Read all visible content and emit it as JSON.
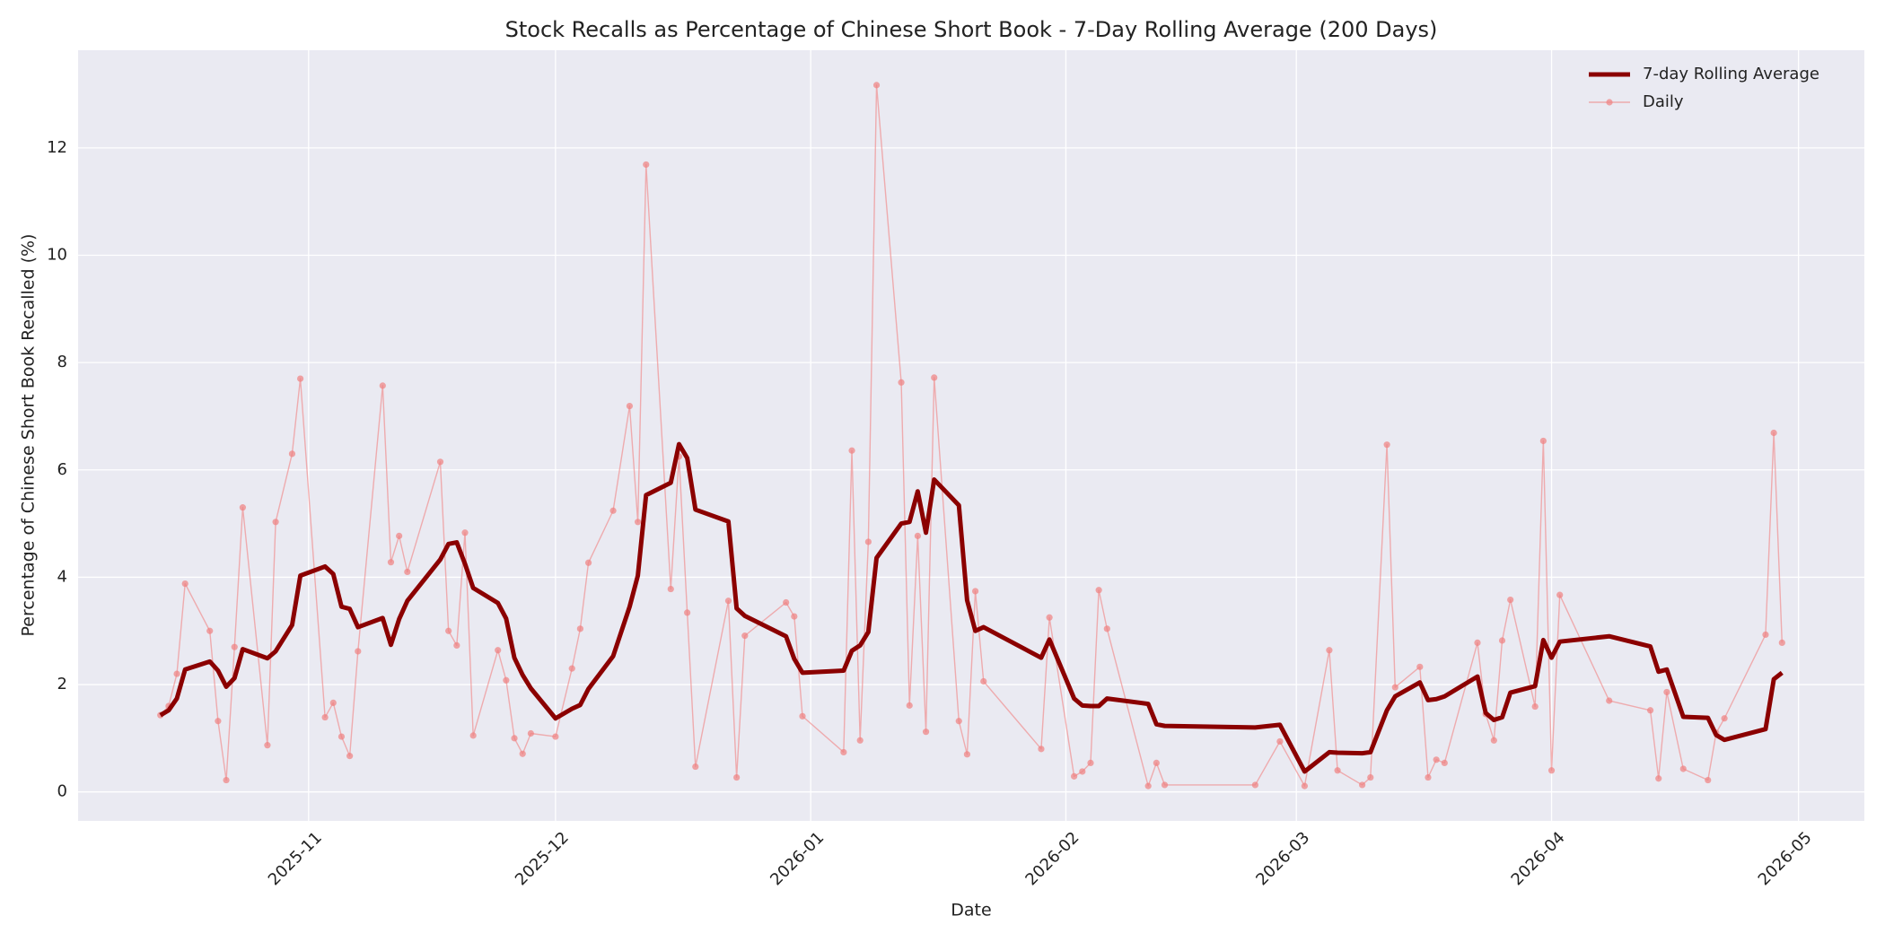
{
  "chart_data": {
    "type": "line",
    "title": "Stock Recalls as Percentage of Chinese Short Book - 7-Day Rolling Average (200 Days)",
    "xlabel": "Date",
    "ylabel": "Percentage of Chinese Short Book Recalled (%)",
    "x": [
      "2025-10-14",
      "2025-10-15",
      "2025-10-16",
      "2025-10-17",
      "2025-10-20",
      "2025-10-21",
      "2025-10-22",
      "2025-10-23",
      "2025-10-24",
      "2025-10-27",
      "2025-10-28",
      "2025-10-30",
      "2025-10-31",
      "2025-11-03",
      "2025-11-04",
      "2025-11-05",
      "2025-11-06",
      "2025-11-07",
      "2025-11-10",
      "2025-11-11",
      "2025-11-12",
      "2025-11-13",
      "2025-11-17",
      "2025-11-18",
      "2025-11-19",
      "2025-11-20",
      "2025-11-21",
      "2025-11-24",
      "2025-11-25",
      "2025-11-26",
      "2025-11-27",
      "2025-11-28",
      "2025-12-01",
      "2025-12-03",
      "2025-12-04",
      "2025-12-05",
      "2025-12-08",
      "2025-12-10",
      "2025-12-11",
      "2025-12-12",
      "2025-12-15",
      "2025-12-16",
      "2025-12-17",
      "2025-12-18",
      "2025-12-22",
      "2025-12-23",
      "2025-12-24",
      "2025-12-29",
      "2025-12-30",
      "2025-12-31",
      "2026-01-05",
      "2026-01-06",
      "2026-01-07",
      "2026-01-08",
      "2026-01-09",
      "2026-01-12",
      "2026-01-13",
      "2026-01-14",
      "2026-01-15",
      "2026-01-16",
      "2026-01-19",
      "2026-01-20",
      "2026-01-21",
      "2026-01-22",
      "2026-01-29",
      "2026-01-30",
      "2026-02-02",
      "2026-02-03",
      "2026-02-04",
      "2026-02-05",
      "2026-02-06",
      "2026-02-11",
      "2026-02-12",
      "2026-02-13",
      "2026-02-24",
      "2026-02-27",
      "2026-03-02",
      "2026-03-05",
      "2026-03-06",
      "2026-03-09",
      "2026-03-10",
      "2026-03-12",
      "2026-03-13",
      "2026-03-16",
      "2026-03-17",
      "2026-03-18",
      "2026-03-19",
      "2026-03-23",
      "2026-03-24",
      "2026-03-25",
      "2026-03-26",
      "2026-03-27",
      "2026-03-30",
      "2026-03-31",
      "2026-04-01",
      "2026-04-02",
      "2026-04-08",
      "2026-04-13",
      "2026-04-14",
      "2026-04-15",
      "2026-04-17",
      "2026-04-20",
      "2026-04-21",
      "2026-04-22",
      "2026-04-27",
      "2026-04-28",
      "2026-04-29"
    ],
    "series": [
      {
        "name": "7-day Rolling Average",
        "color": "#8b0000",
        "values": [
          1.43,
          1.52,
          1.74,
          2.28,
          2.43,
          2.26,
          1.96,
          2.12,
          2.66,
          2.49,
          2.62,
          3.11,
          4.03,
          4.2,
          4.06,
          3.45,
          3.41,
          3.07,
          3.24,
          2.74,
          3.22,
          3.56,
          4.33,
          4.62,
          4.65,
          4.25,
          3.8,
          3.52,
          3.23,
          2.5,
          2.18,
          1.93,
          1.37,
          1.55,
          1.62,
          1.92,
          2.53,
          3.45,
          4.03,
          5.53,
          5.76,
          6.48,
          6.22,
          5.26,
          5.04,
          3.42,
          3.28,
          2.9,
          2.48,
          2.22,
          2.26,
          2.63,
          2.73,
          2.98,
          4.36,
          5.0,
          5.03,
          5.6,
          4.83,
          5.82,
          5.34,
          3.57,
          3.0,
          3.07,
          2.5,
          2.84,
          1.74,
          1.61,
          1.6,
          1.6,
          1.74,
          1.64,
          1.26,
          1.23,
          1.2,
          1.25,
          0.38,
          0.74,
          0.73,
          0.72,
          0.74,
          1.52,
          1.78,
          2.04,
          1.71,
          1.73,
          1.78,
          2.15,
          1.47,
          1.34,
          1.39,
          1.85,
          1.97,
          2.83,
          2.5,
          2.8,
          2.9,
          2.71,
          2.24,
          2.28,
          1.4,
          1.38,
          1.06,
          0.97,
          1.17,
          2.1,
          2.22
        ]
      },
      {
        "name": "Daily",
        "color": "#f08080",
        "marker": true,
        "values": [
          1.43,
          1.6,
          2.2,
          3.88,
          3.0,
          1.32,
          0.22,
          2.7,
          5.3,
          0.87,
          5.03,
          6.3,
          7.7,
          1.39,
          1.66,
          1.03,
          0.67,
          2.62,
          7.57,
          4.28,
          4.77,
          4.1,
          6.15,
          3.0,
          2.73,
          4.83,
          1.05,
          2.64,
          2.08,
          1.0,
          0.71,
          1.09,
          1.03,
          2.3,
          3.04,
          4.27,
          5.24,
          7.19,
          5.03,
          11.69,
          3.78,
          6.25,
          3.34,
          0.47,
          3.56,
          0.27,
          2.91,
          3.53,
          3.27,
          1.41,
          0.74,
          6.36,
          0.96,
          4.66,
          13.17,
          7.63,
          1.61,
          4.77,
          1.12,
          7.72,
          1.32,
          0.7,
          3.74,
          2.06,
          0.8,
          3.25,
          0.29,
          0.38,
          0.54,
          3.76,
          3.04,
          0.11,
          0.54,
          0.13,
          0.13,
          0.94,
          0.11,
          2.64,
          0.4,
          0.13,
          0.27,
          6.47,
          1.95,
          2.33,
          0.27,
          0.6,
          0.54,
          2.78,
          1.45,
          0.96,
          2.82,
          3.58,
          1.59,
          6.54,
          0.4,
          3.67,
          1.7,
          1.52,
          0.25,
          1.86,
          0.43,
          0.22,
          1.1,
          1.37,
          2.93,
          6.69,
          2.78
        ]
      }
    ],
    "xlim": [
      "2025-10-04",
      "2026-05-09"
    ],
    "xticks": [
      {
        "value": "2025-11-01",
        "label": "2025-11"
      },
      {
        "value": "2025-12-01",
        "label": "2025-12"
      },
      {
        "value": "2026-01-01",
        "label": "2026-01"
      },
      {
        "value": "2026-02-01",
        "label": "2026-02"
      },
      {
        "value": "2026-03-01",
        "label": "2026-03"
      },
      {
        "value": "2026-04-01",
        "label": "2026-04"
      },
      {
        "value": "2026-05-01",
        "label": "2026-05"
      }
    ],
    "ylim": [
      -0.54,
      13.82
    ],
    "yticks": [
      0,
      2,
      4,
      6,
      8,
      10,
      12
    ],
    "grid": true,
    "legend": "upper right"
  }
}
